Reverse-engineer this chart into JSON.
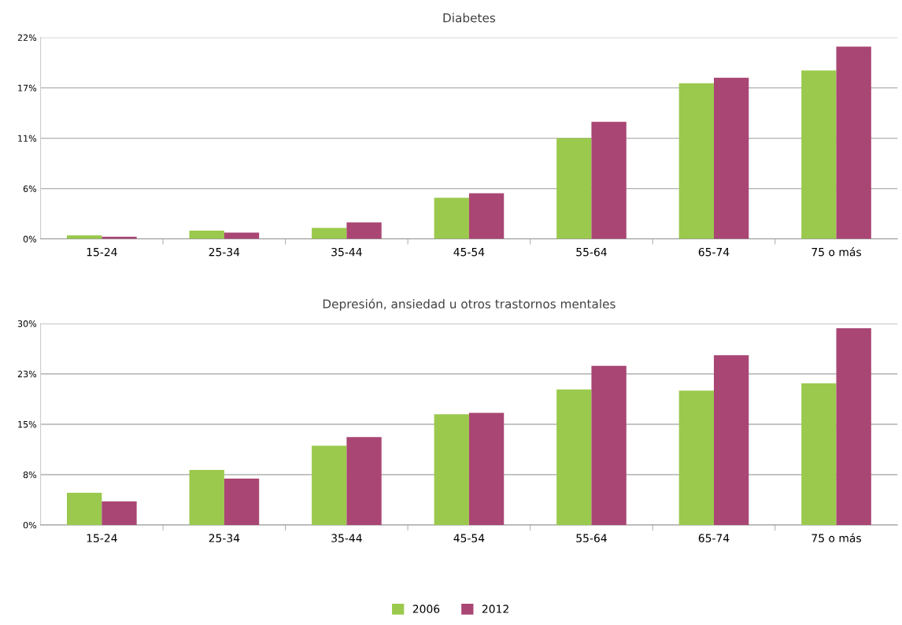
{
  "chart_data": [
    {
      "type": "bar",
      "title": "Diabetes",
      "categories": [
        "15-24",
        "25-34",
        "35-44",
        "45-54",
        "55-64",
        "65-74",
        "75 o más"
      ],
      "series": [
        {
          "name": "2006",
          "color": "#9bc94d",
          "values": [
            0.4,
            0.9,
            1.2,
            4.5,
            11.0,
            17.0,
            18.4
          ]
        },
        {
          "name": "2012",
          "color": "#a94673",
          "values": [
            0.25,
            0.7,
            1.8,
            5.0,
            12.8,
            17.6,
            21.0
          ]
        }
      ],
      "ylim": [
        0,
        22
      ],
      "yticks": [
        {
          "value": 0,
          "label": "0%"
        },
        {
          "value": 5.5,
          "label": "6%"
        },
        {
          "value": 11,
          "label": "11%"
        },
        {
          "value": 16.5,
          "label": "17%"
        },
        {
          "value": 22,
          "label": "22%"
        }
      ],
      "grid": "y",
      "legend": "bottom"
    },
    {
      "type": "bar",
      "title": "Depresión, ansiedad u otros trastornos mentales",
      "categories": [
        "15-24",
        "25-34",
        "35-44",
        "45-54",
        "55-64",
        "65-74",
        "75 o más"
      ],
      "series": [
        {
          "name": "2006",
          "color": "#9bc94d",
          "values": [
            4.8,
            8.2,
            11.8,
            16.5,
            20.2,
            20.0,
            21.1
          ]
        },
        {
          "name": "2012",
          "color": "#a94673",
          "values": [
            3.5,
            6.9,
            13.1,
            16.7,
            23.7,
            25.3,
            29.3
          ]
        }
      ],
      "ylim": [
        0,
        30
      ],
      "yticks": [
        {
          "value": 0,
          "label": "0%"
        },
        {
          "value": 7.5,
          "label": "8%"
        },
        {
          "value": 15,
          "label": "15%"
        },
        {
          "value": 22.5,
          "label": "23%"
        },
        {
          "value": 30,
          "label": "30%"
        }
      ],
      "grid": "y",
      "legend": "bottom"
    }
  ]
}
